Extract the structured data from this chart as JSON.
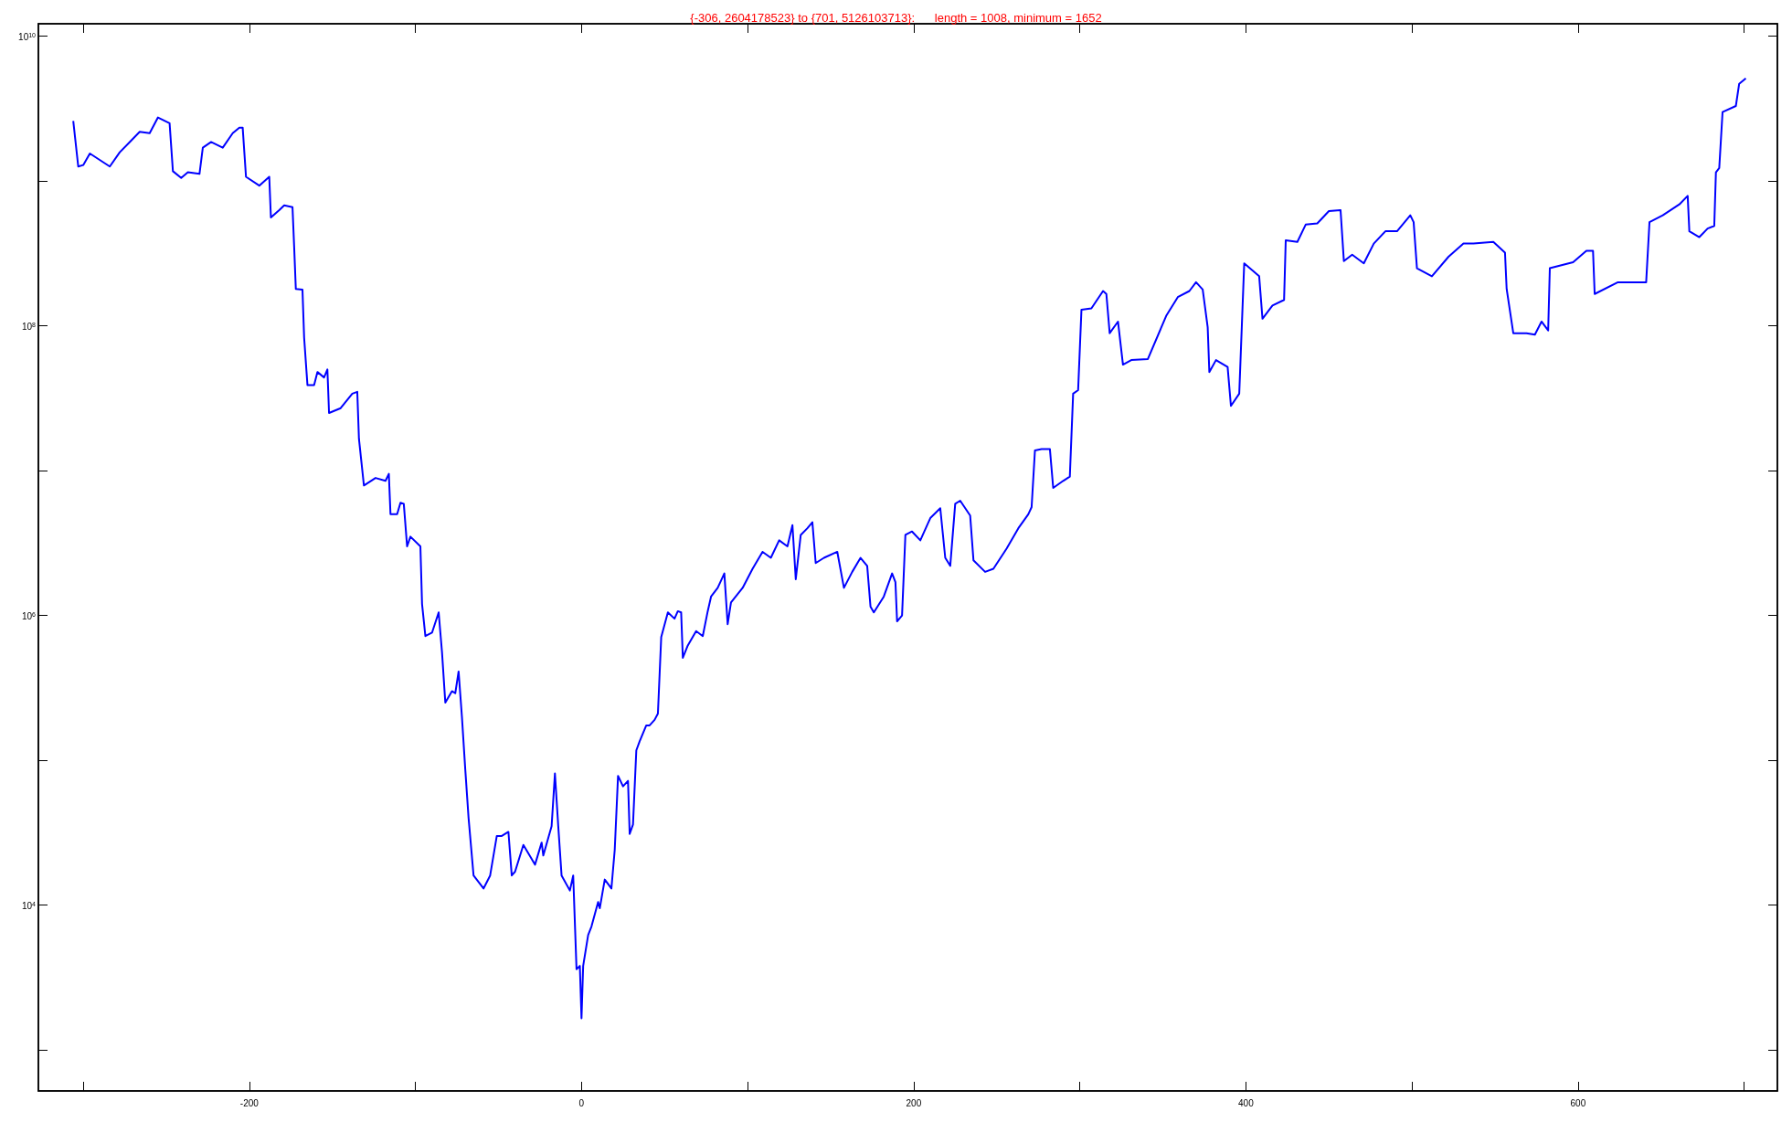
{
  "chart_data": {
    "type": "line",
    "title": "{-306, 2604178523} to {701, 5126103713}:      length = 1008, minimum = 1652",
    "log": true,
    "grid": false,
    "marker": "none",
    "line_style": "solid",
    "xlim": [
      -327,
      720
    ],
    "xticks": [
      {
        "value": -300,
        "label": null
      },
      -200,
      {
        "value": -100,
        "label": null
      },
      0,
      {
        "value": 100,
        "label": null
      },
      200,
      {
        "value": 300,
        "label": null
      },
      400,
      {
        "value": 500,
        "label": null
      },
      600,
      {
        "value": 700,
        "label": null
      }
    ],
    "ylim": [
      520,
      12200000000
    ],
    "yticks": [
      {
        "value": 1000,
        "label": null
      },
      {
        "value": 10000,
        "label": "10$^{4}$"
      },
      {
        "value": 100000,
        "label": null
      },
      {
        "value": 1000000,
        "label": "10$^{6}$"
      },
      {
        "value": 10000000,
        "label": null
      },
      {
        "value": 100000000,
        "label": "10$^{8}$"
      },
      {
        "value": 1000000000,
        "label": null
      },
      {
        "value": 10000000000,
        "label": "10$^{10}$"
      }
    ],
    "series": [
      {
        "color": "#0000ff",
        "x": [
          -306,
          -303,
          -300,
          -296,
          -288,
          -284,
          -278,
          -272,
          -266,
          -260,
          -255,
          -248,
          -246,
          -241,
          -237,
          -230,
          -228,
          -223,
          -216,
          -210,
          -206,
          -204,
          -202,
          -194,
          -188,
          -187,
          -182,
          -179,
          -174,
          -173,
          -172,
          -168,
          -167,
          -165,
          -161,
          -159,
          -155,
          -153,
          -152,
          -145,
          -138,
          -135,
          -134,
          -131,
          -124,
          -118,
          -116,
          -115,
          -111,
          -109,
          -107,
          -105,
          -103,
          -97,
          -96,
          -94,
          -90,
          -86,
          -84,
          -82,
          -78,
          -76,
          -74,
          -72,
          -70,
          -68,
          -65,
          -59,
          -55,
          -51,
          -48,
          -44,
          -42,
          -40,
          -35,
          -28,
          -24,
          -23,
          -18,
          -16,
          -14,
          -12,
          -7,
          -5,
          -3,
          -1,
          0,
          1,
          4,
          6,
          10,
          11,
          14,
          18,
          20,
          22,
          25,
          28,
          29,
          31,
          33,
          35,
          39,
          41,
          44,
          46,
          48,
          52,
          56,
          58,
          60,
          61,
          64,
          69,
          73,
          76,
          78,
          82,
          86,
          88,
          90,
          97,
          103,
          109,
          114,
          119,
          124,
          127,
          129,
          132,
          136,
          139,
          141,
          146,
          154,
          158,
          163,
          168,
          172,
          174,
          176,
          182,
          187,
          189,
          190,
          193,
          195,
          199,
          204,
          210,
          216,
          219,
          222,
          225,
          228,
          234,
          236,
          243,
          248,
          256,
          263,
          269,
          271,
          273,
          277,
          282,
          284,
          290,
          294,
          296,
          299,
          301,
          307,
          314,
          316,
          318,
          323,
          326,
          331,
          341,
          352,
          359,
          366,
          370,
          374,
          377,
          378,
          382,
          389,
          391,
          396,
          399,
          408,
          410,
          416,
          423,
          424,
          431,
          436,
          443,
          450,
          457,
          459,
          464,
          471,
          477,
          484,
          491,
          499,
          501,
          503,
          512,
          522,
          531,
          537,
          549,
          556,
          557,
          561,
          569,
          574,
          578,
          582,
          583,
          597,
          605,
          609,
          610,
          624,
          641,
          643,
          651,
          661,
          666,
          667,
          673,
          678,
          682,
          683,
          685,
          687,
          695,
          697,
          701
        ],
        "values": [
          2604178523,
          1260000000.0,
          1290000000.0,
          1550000000.0,
          1350000000.0,
          1260000000.0,
          1580000000.0,
          1860000000.0,
          2190000000.0,
          2140000000.0,
          2750000000.0,
          2510000000.0,
          1170000000.0,
          1050000000.0,
          1150000000.0,
          1120000000.0,
          1700000000.0,
          1860000000.0,
          1700000000.0,
          2140000000.0,
          2340000000.0,
          2340000000.0,
          1070000000.0,
          930000000.0,
          1070000000.0,
          560000000.0,
          630000000.0,
          680000000.0,
          660000000.0,
          350000000.0,
          180000000.0,
          178000000.0,
          83000000.0,
          39000000.0,
          39000000.0,
          48000000.0,
          44000000.0,
          50000000.0,
          25000000.0,
          27000000.0,
          34000000.0,
          35000000.0,
          16600000.0,
          7900000.0,
          8900000.0,
          8500000.0,
          9500000.0,
          5000000.0,
          5000000.0,
          6000000.0,
          5900000.0,
          3000000.0,
          3500000.0,
          3000000.0,
          1200000.0,
          720000.0,
          760000.0,
          1050000.0,
          560000.0,
          250000.0,
          300000.0,
          290000.0,
          410000.0,
          200000.0,
          87000.0,
          40000.0,
          16000.0,
          13000.0,
          16000.0,
          30000.0,
          30000.0,
          32000.0,
          16000.0,
          17000.0,
          26000.0,
          19000.0,
          27000.0,
          22000.0,
          35000.0,
          81000.0,
          35000.0,
          16000.0,
          12600.0,
          16000.0,
          3600.0,
          3800.0,
          1652,
          3800.0,
          6200.0,
          7100.0,
          10500.0,
          9500.0,
          15000.0,
          13000.0,
          24000.0,
          78000.0,
          66000.0,
          72000.0,
          31000.0,
          36000.0,
          117000.0,
          135000.0,
          174000.0,
          174000.0,
          190000.0,
          210000.0,
          710000.0,
          1050000.0,
          950000.0,
          1070000.0,
          1050000.0,
          510000.0,
          620000.0,
          780000.0,
          720000.0,
          1070000.0,
          1350000.0,
          1550000.0,
          1950000.0,
          870000.0,
          1230000.0,
          1550000.0,
          2100000.0,
          2750000.0,
          2500000.0,
          3300000.0,
          3000000.0,
          4200000.0,
          1780000.0,
          3600000.0,
          4000000.0,
          4400000.0,
          2300000.0,
          2500000.0,
          2750000.0,
          1550000.0,
          2000000.0,
          2500000.0,
          2200000.0,
          1150000.0,
          1050000.0,
          1350000.0,
          1950000.0,
          1700000.0,
          910000.0,
          1000000.0,
          3600000.0,
          3800000.0,
          3300000.0,
          4700000.0,
          5500000.0,
          2500000.0,
          2200000.0,
          5900000.0,
          6200000.0,
          4900000.0,
          2400000.0,
          2000000.0,
          2100000.0,
          2900000.0,
          4000000.0,
          5000000.0,
          5600000.0,
          13800000.0,
          14100000.0,
          14100000.0,
          7600000.0,
          8500000.0,
          9100000.0,
          34000000.0,
          36000000.0,
          129000000.0,
          132000000.0,
          174000000.0,
          166000000.0,
          89000000.0,
          107000000.0,
          54000000.0,
          58000000.0,
          59000000.0,
          117000000.0,
          158000000.0,
          174000000.0,
          200000000.0,
          178000000.0,
          98000000.0,
          48000000.0,
          58000000.0,
          52000000.0,
          28000000.0,
          34000000.0,
          270000000.0,
          220000000.0,
          112000000.0,
          138000000.0,
          151000000.0,
          390000000.0,
          380000000.0,
          500000000.0,
          510000000.0,
          620000000.0,
          630000000.0,
          280000000.0,
          310000000.0,
          270000000.0,
          370000000.0,
          450000000.0,
          450000000.0,
          580000000.0,
          520000000.0,
          250000000.0,
          220000000.0,
          300000000.0,
          370000000.0,
          370000000.0,
          380000000.0,
          320000000.0,
          180000000.0,
          89000000.0,
          89000000.0,
          87000000.0,
          107000000.0,
          93000000.0,
          250000000.0,
          275000000.0,
          330000000.0,
          330000000.0,
          166000000.0,
          200000000.0,
          200000000.0,
          520000000.0,
          580000000.0,
          690000000.0,
          790000000.0,
          450000000.0,
          410000000.0,
          470000000.0,
          490000000.0,
          1150000000.0,
          1230000000.0,
          3000000000.0,
          3300000000.0,
          4700000000.0,
          5126103713
        ]
      }
    ]
  }
}
